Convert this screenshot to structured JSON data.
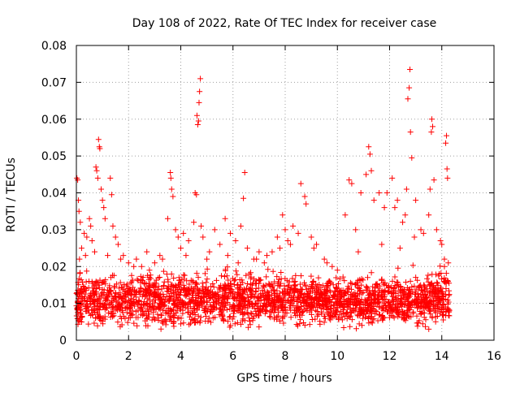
{
  "chart_data": {
    "type": "scatter",
    "title": "Day 108 of 2022, Rate Of TEC Index for receiver case",
    "xlabel": "GPS time / hours",
    "ylabel": "ROTI / TECUs",
    "xlim": [
      0,
      16
    ],
    "ylim": [
      0,
      0.08
    ],
    "xticks": [
      "0",
      "2",
      "4",
      "6",
      "8",
      "10",
      "12",
      "14",
      "16"
    ],
    "yticks": [
      "0",
      "0.01",
      "0.02",
      "0.03",
      "0.04",
      "0.05",
      "0.06",
      "0.07",
      "0.08"
    ],
    "grid": true,
    "marker": "+",
    "color": "#ff0000",
    "series": [
      {
        "name": "receiver case",
        "points": [
          [
            0.02,
            0.044
          ],
          [
            0.05,
            0.0435
          ],
          [
            0.08,
            0.038
          ],
          [
            0.1,
            0.035
          ],
          [
            0.15,
            0.032
          ],
          [
            0.2,
            0.025
          ],
          [
            0.3,
            0.029
          ],
          [
            0.4,
            0.028
          ],
          [
            0.5,
            0.033
          ],
          [
            0.55,
            0.031
          ],
          [
            0.6,
            0.027
          ],
          [
            0.75,
            0.047
          ],
          [
            0.78,
            0.046
          ],
          [
            0.82,
            0.044
          ],
          [
            0.85,
            0.0545
          ],
          [
            0.88,
            0.0525
          ],
          [
            0.9,
            0.052
          ],
          [
            0.95,
            0.041
          ],
          [
            1.0,
            0.038
          ],
          [
            1.05,
            0.036
          ],
          [
            1.1,
            0.033
          ],
          [
            1.3,
            0.044
          ],
          [
            1.35,
            0.0395
          ],
          [
            1.4,
            0.031
          ],
          [
            1.5,
            0.028
          ],
          [
            1.6,
            0.026
          ],
          [
            1.8,
            0.023
          ],
          [
            2.0,
            0.021
          ],
          [
            2.3,
            0.022
          ],
          [
            2.5,
            0.02
          ],
          [
            2.7,
            0.024
          ],
          [
            3.0,
            0.021
          ],
          [
            3.2,
            0.023
          ],
          [
            3.5,
            0.033
          ],
          [
            3.6,
            0.0455
          ],
          [
            3.62,
            0.044
          ],
          [
            3.65,
            0.041
          ],
          [
            3.7,
            0.039
          ],
          [
            3.8,
            0.03
          ],
          [
            3.9,
            0.028
          ],
          [
            4.0,
            0.025
          ],
          [
            4.1,
            0.029
          ],
          [
            4.3,
            0.027
          ],
          [
            4.5,
            0.032
          ],
          [
            4.55,
            0.04
          ],
          [
            4.6,
            0.0395
          ],
          [
            4.62,
            0.061
          ],
          [
            4.65,
            0.0585
          ],
          [
            4.68,
            0.0595
          ],
          [
            4.7,
            0.0645
          ],
          [
            4.72,
            0.0675
          ],
          [
            4.75,
            0.071
          ],
          [
            4.78,
            0.031
          ],
          [
            4.85,
            0.028
          ],
          [
            5.0,
            0.022
          ],
          [
            5.3,
            0.03
          ],
          [
            5.5,
            0.026
          ],
          [
            5.7,
            0.033
          ],
          [
            5.9,
            0.029
          ],
          [
            6.1,
            0.027
          ],
          [
            6.3,
            0.031
          ],
          [
            6.4,
            0.0385
          ],
          [
            6.45,
            0.0455
          ],
          [
            6.55,
            0.025
          ],
          [
            6.8,
            0.022
          ],
          [
            7.0,
            0.024
          ],
          [
            7.2,
            0.021
          ],
          [
            7.5,
            0.024
          ],
          [
            7.7,
            0.028
          ],
          [
            7.9,
            0.034
          ],
          [
            8.0,
            0.03
          ],
          [
            8.1,
            0.027
          ],
          [
            8.3,
            0.031
          ],
          [
            8.5,
            0.029
          ],
          [
            8.6,
            0.0425
          ],
          [
            8.75,
            0.039
          ],
          [
            8.8,
            0.037
          ],
          [
            9.0,
            0.028
          ],
          [
            9.2,
            0.026
          ],
          [
            9.5,
            0.022
          ],
          [
            9.8,
            0.02
          ],
          [
            10.0,
            0.019
          ],
          [
            10.3,
            0.034
          ],
          [
            10.45,
            0.0435
          ],
          [
            10.55,
            0.0425
          ],
          [
            10.7,
            0.03
          ],
          [
            10.9,
            0.04
          ],
          [
            11.1,
            0.045
          ],
          [
            11.2,
            0.0525
          ],
          [
            11.25,
            0.0505
          ],
          [
            11.3,
            0.046
          ],
          [
            11.4,
            0.038
          ],
          [
            11.6,
            0.04
          ],
          [
            11.8,
            0.036
          ],
          [
            11.9,
            0.04
          ],
          [
            12.1,
            0.044
          ],
          [
            12.2,
            0.036
          ],
          [
            12.3,
            0.038
          ],
          [
            12.5,
            0.032
          ],
          [
            12.6,
            0.034
          ],
          [
            12.65,
            0.041
          ],
          [
            12.7,
            0.0655
          ],
          [
            12.75,
            0.0685
          ],
          [
            12.78,
            0.0735
          ],
          [
            12.8,
            0.0565
          ],
          [
            12.85,
            0.0495
          ],
          [
            13.0,
            0.038
          ],
          [
            13.2,
            0.03
          ],
          [
            13.3,
            0.029
          ],
          [
            13.5,
            0.034
          ],
          [
            13.55,
            0.041
          ],
          [
            13.6,
            0.0565
          ],
          [
            13.62,
            0.06
          ],
          [
            13.65,
            0.058
          ],
          [
            13.7,
            0.0435
          ],
          [
            13.8,
            0.03
          ],
          [
            14.0,
            0.026
          ],
          [
            14.1,
            0.022
          ],
          [
            14.15,
            0.0535
          ],
          [
            14.18,
            0.0555
          ],
          [
            14.2,
            0.0465
          ],
          [
            14.22,
            0.044
          ],
          [
            14.25,
            0.021
          ],
          [
            14.1,
            0.02
          ],
          [
            13.9,
            0.018
          ],
          [
            13.95,
            0.027
          ],
          [
            12.95,
            0.028
          ],
          [
            12.4,
            0.025
          ],
          [
            11.7,
            0.026
          ],
          [
            10.8,
            0.024
          ],
          [
            9.6,
            0.021
          ],
          [
            9.1,
            0.025
          ],
          [
            8.2,
            0.026
          ],
          [
            7.8,
            0.025
          ],
          [
            7.3,
            0.023
          ],
          [
            6.9,
            0.022
          ],
          [
            6.2,
            0.021
          ],
          [
            5.8,
            0.023
          ],
          [
            5.1,
            0.024
          ],
          [
            4.2,
            0.023
          ],
          [
            3.3,
            0.022
          ],
          [
            2.8,
            0.019
          ],
          [
            2.2,
            0.02
          ],
          [
            1.7,
            0.022
          ],
          [
            1.2,
            0.023
          ],
          [
            0.7,
            0.024
          ],
          [
            0.35,
            0.023
          ],
          [
            0.12,
            0.022
          ]
        ]
      }
    ],
    "dense_band": {
      "x_range": [
        0,
        14.3
      ],
      "y_low": 0.003,
      "y_high": 0.02,
      "y_center": 0.011,
      "note": "dense cluster of ROTI samples"
    }
  }
}
